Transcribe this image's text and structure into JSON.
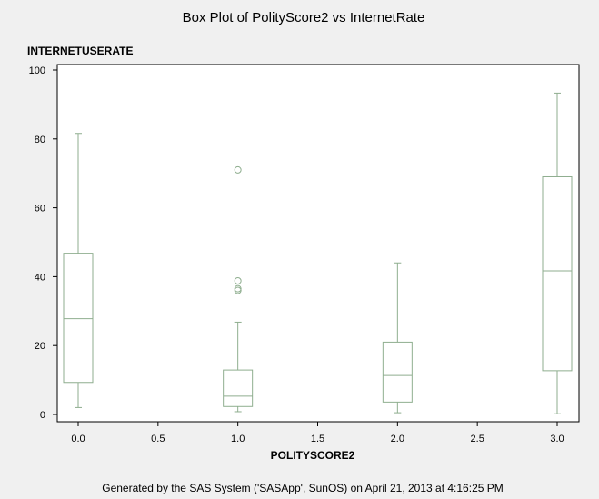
{
  "chart_data": {
    "type": "box",
    "title": "Box Plot of PolityScore2 vs InternetRate",
    "xlabel": "POLITYSCORE2",
    "ylabel": "INTERNETUSERATE",
    "footer": "Generated by the SAS System ('SASApp', SunOS) on April 21, 2013 at 4:16:25 PM",
    "xlim": [
      0.0,
      3.0
    ],
    "ylim": [
      0,
      100
    ],
    "x_ticks": [
      "0.0",
      "0.5",
      "1.0",
      "1.5",
      "2.0",
      "2.5",
      "3.0"
    ],
    "y_ticks": [
      "0",
      "20",
      "40",
      "60",
      "80",
      "100"
    ],
    "grid": false,
    "color": "#8fae8f",
    "boxes": [
      {
        "x": 0.0,
        "whisker_low": 2,
        "q1": 9.3,
        "median": 27.8,
        "q3": 46.8,
        "whisker_high": 81.6,
        "outliers": []
      },
      {
        "x": 1.0,
        "whisker_low": 0.8,
        "q1": 2.3,
        "median": 5.3,
        "q3": 12.9,
        "whisker_high": 26.8,
        "outliers": [
          71,
          38.8,
          36.5,
          36
        ]
      },
      {
        "x": 2.0,
        "whisker_low": 0.5,
        "q1": 3.6,
        "median": 11.3,
        "q3": 21,
        "whisker_high": 44,
        "outliers": []
      },
      {
        "x": 3.0,
        "whisker_low": 0.2,
        "q1": 12.7,
        "median": 41.7,
        "q3": 69,
        "whisker_high": 93.3,
        "outliers": []
      }
    ]
  }
}
